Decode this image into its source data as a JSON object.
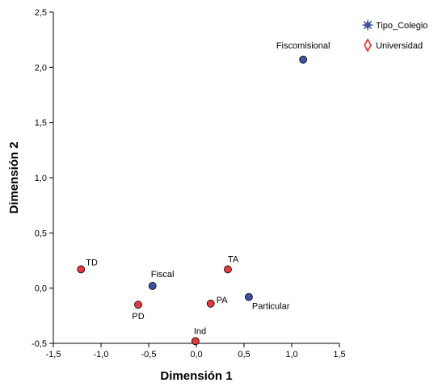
{
  "chart_data": {
    "type": "scatter",
    "title": "",
    "xlabel": "Dimensión 1",
    "ylabel": "Dimensión 2",
    "xlim": [
      -1.5,
      1.5
    ],
    "ylim": [
      -0.5,
      2.5
    ],
    "xticks": [
      "-1,5",
      "-1,0",
      "-0,5",
      "0,0",
      "0,5",
      "1,0",
      "1,5"
    ],
    "yticks": [
      "-0,5",
      "0,0",
      "0,5",
      "1,0",
      "1,5",
      "2,0",
      "2,5"
    ],
    "grid": false,
    "legend_position": "top-right",
    "series": [
      {
        "name": "Tipo_Colegio",
        "color": "#3f51a6",
        "marker": "star",
        "points": [
          {
            "label": "Fiscomisional",
            "x": 1.12,
            "y": 2.07
          },
          {
            "label": "Fiscal",
            "x": -0.46,
            "y": 0.02
          },
          {
            "label": "Particular",
            "x": 0.55,
            "y": -0.08
          }
        ]
      },
      {
        "name": "Universidad",
        "color": "#e8383d",
        "marker": "diamond",
        "points": [
          {
            "label": "TD",
            "x": -1.21,
            "y": 0.17
          },
          {
            "label": "TA",
            "x": 0.33,
            "y": 0.17
          },
          {
            "label": "PD",
            "x": -0.61,
            "y": -0.15
          },
          {
            "label": "PA",
            "x": 0.15,
            "y": -0.14
          },
          {
            "label": "Ind",
            "x": -0.01,
            "y": -0.48
          }
        ]
      }
    ]
  }
}
